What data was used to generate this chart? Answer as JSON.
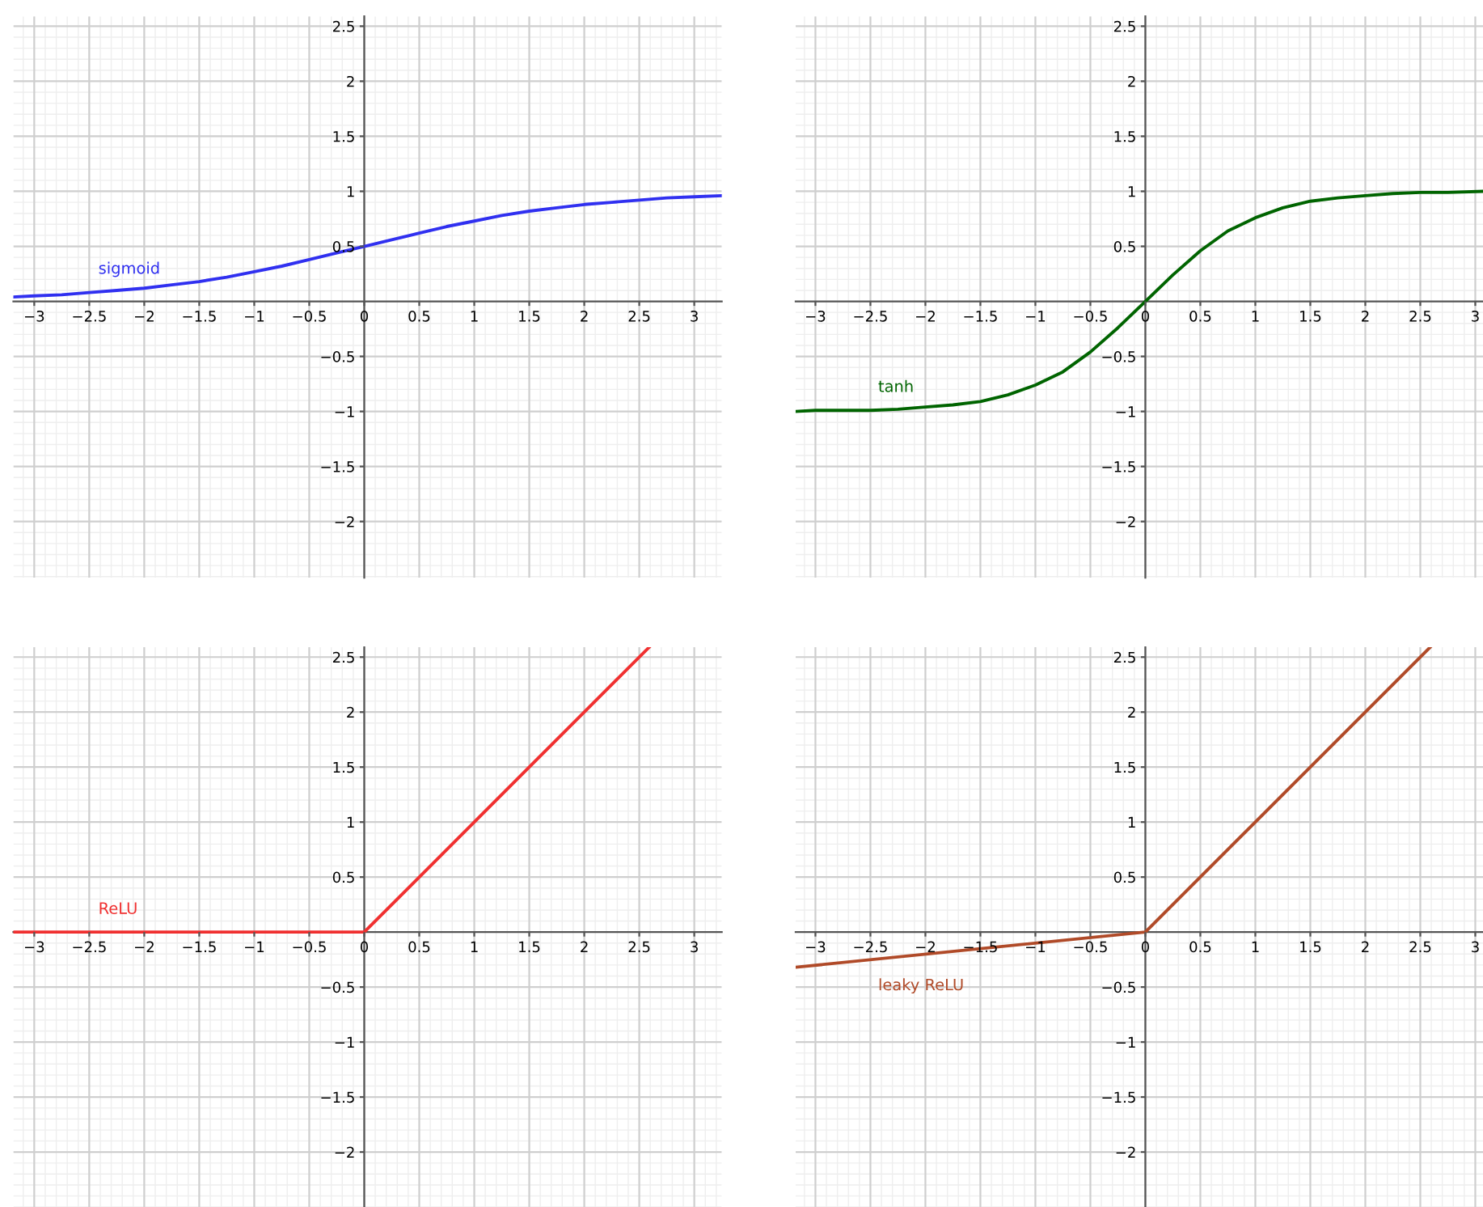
{
  "chart_data": [
    {
      "type": "line",
      "xlim": [
        -3.19,
        3.25
      ],
      "ylim": [
        -2.51,
        2.59
      ],
      "grid": true,
      "xticks": [
        {
          "value": -3,
          "label": "−3"
        },
        {
          "value": -2.5,
          "label": "−2.5"
        },
        {
          "value": -2,
          "label": "−2"
        },
        {
          "value": -1.5,
          "label": "−1.5"
        },
        {
          "value": -1,
          "label": "−1"
        },
        {
          "value": -0.5,
          "label": "−0.5"
        },
        0,
        0.5,
        1,
        1.5,
        2,
        2.5,
        3
      ],
      "yticks": [
        {
          "value": -2,
          "label": "−2"
        },
        {
          "value": -1.5,
          "label": "−1.5"
        },
        {
          "value": -1,
          "label": "−1"
        },
        {
          "value": -0.5,
          "label": "−0.5"
        },
        0.5,
        1,
        1.5,
        2,
        2.5
      ],
      "series": [
        {
          "name": "sigmoid",
          "color": "#3030f0",
          "x": [
            -3.19,
            -3,
            -2.75,
            -2.5,
            -2.25,
            -2,
            -1.75,
            -1.5,
            -1.25,
            -1,
            -0.75,
            -0.5,
            -0.25,
            0,
            0.25,
            0.5,
            0.75,
            1,
            1.25,
            1.5,
            1.75,
            2,
            2.25,
            2.5,
            2.75,
            3,
            3.25
          ],
          "values": [
            0.04,
            0.05,
            0.06,
            0.08,
            0.1,
            0.12,
            0.15,
            0.18,
            0.22,
            0.27,
            0.32,
            0.38,
            0.44,
            0.5,
            0.56,
            0.62,
            0.68,
            0.73,
            0.78,
            0.82,
            0.85,
            0.88,
            0.9,
            0.92,
            0.94,
            0.95,
            0.96
          ]
        }
      ]
    },
    {
      "type": "line",
      "xlim": [
        -3.18,
        3.07
      ],
      "ylim": [
        -2.51,
        2.59
      ],
      "grid": true,
      "xticks": [
        {
          "value": -3,
          "label": "−3"
        },
        {
          "value": -2.5,
          "label": "−2.5"
        },
        {
          "value": -2,
          "label": "−2"
        },
        {
          "value": -1.5,
          "label": "−1.5"
        },
        {
          "value": -1,
          "label": "−1"
        },
        {
          "value": -0.5,
          "label": "−0.5"
        },
        0,
        0.5,
        1,
        1.5,
        2,
        2.5,
        3
      ],
      "yticks": [
        {
          "value": -2,
          "label": "−2"
        },
        {
          "value": -1.5,
          "label": "−1.5"
        },
        {
          "value": -1,
          "label": "−1"
        },
        {
          "value": -0.5,
          "label": "−0.5"
        },
        0.5,
        1,
        1.5,
        2,
        2.5
      ],
      "series": [
        {
          "name": "tanh",
          "color": "#006400",
          "x": [
            -3.18,
            -3,
            -2.75,
            -2.5,
            -2.25,
            -2,
            -1.75,
            -1.5,
            -1.25,
            -1,
            -0.75,
            -0.5,
            -0.25,
            0,
            0.25,
            0.5,
            0.75,
            1,
            1.25,
            1.5,
            1.75,
            2,
            2.25,
            2.5,
            2.75,
            3.07
          ],
          "values": [
            -1.0,
            -0.99,
            -0.99,
            -0.99,
            -0.98,
            -0.96,
            -0.94,
            -0.91,
            -0.85,
            -0.76,
            -0.64,
            -0.46,
            -0.24,
            0,
            0.24,
            0.46,
            0.64,
            0.76,
            0.85,
            0.91,
            0.94,
            0.96,
            0.98,
            0.99,
            0.99,
            1.0
          ]
        }
      ]
    },
    {
      "type": "line",
      "xlim": [
        -3.19,
        3.25
      ],
      "ylim": [
        -2.5,
        2.59
      ],
      "grid": true,
      "xticks": [
        {
          "value": -3,
          "label": "−3"
        },
        {
          "value": -2.5,
          "label": "−2.5"
        },
        {
          "value": -2,
          "label": "−2"
        },
        {
          "value": -1.5,
          "label": "−1.5"
        },
        {
          "value": -1,
          "label": "−1"
        },
        {
          "value": -0.5,
          "label": "−0.5"
        },
        0,
        0.5,
        1,
        1.5,
        2,
        2.5,
        3
      ],
      "yticks": [
        {
          "value": -2,
          "label": "−2"
        },
        {
          "value": -1.5,
          "label": "−1.5"
        },
        {
          "value": -1,
          "label": "−1"
        },
        {
          "value": -0.5,
          "label": "−0.5"
        },
        0.5,
        1,
        1.5,
        2,
        2.5
      ],
      "series": [
        {
          "name": "ReLU",
          "color": "#f03030",
          "x": [
            -3.19,
            0,
            2.59
          ],
          "values": [
            0,
            0,
            2.59
          ]
        }
      ]
    },
    {
      "type": "line",
      "xlim": [
        -3.18,
        3.07
      ],
      "ylim": [
        -2.5,
        2.59
      ],
      "grid": true,
      "xticks": [
        {
          "value": -3,
          "label": "−3"
        },
        {
          "value": -2.5,
          "label": "−2.5"
        },
        {
          "value": -2,
          "label": "−2"
        },
        {
          "value": -1.5,
          "label": "−1.5"
        },
        {
          "value": -1,
          "label": "−1"
        },
        {
          "value": -0.5,
          "label": "−0.5"
        },
        0,
        0.5,
        1,
        1.5,
        2,
        2.5,
        3
      ],
      "yticks": [
        {
          "value": -2,
          "label": "−2"
        },
        {
          "value": -1.5,
          "label": "−1.5"
        },
        {
          "value": -1,
          "label": "−1"
        },
        {
          "value": -0.5,
          "label": "−0.5"
        },
        0.5,
        1,
        1.5,
        2,
        2.5
      ],
      "series": [
        {
          "name": "leaky ReLU",
          "color": "#b04a28",
          "x": [
            -3.18,
            0,
            2.59
          ],
          "values": [
            -0.32,
            0,
            2.59
          ]
        }
      ]
    }
  ]
}
